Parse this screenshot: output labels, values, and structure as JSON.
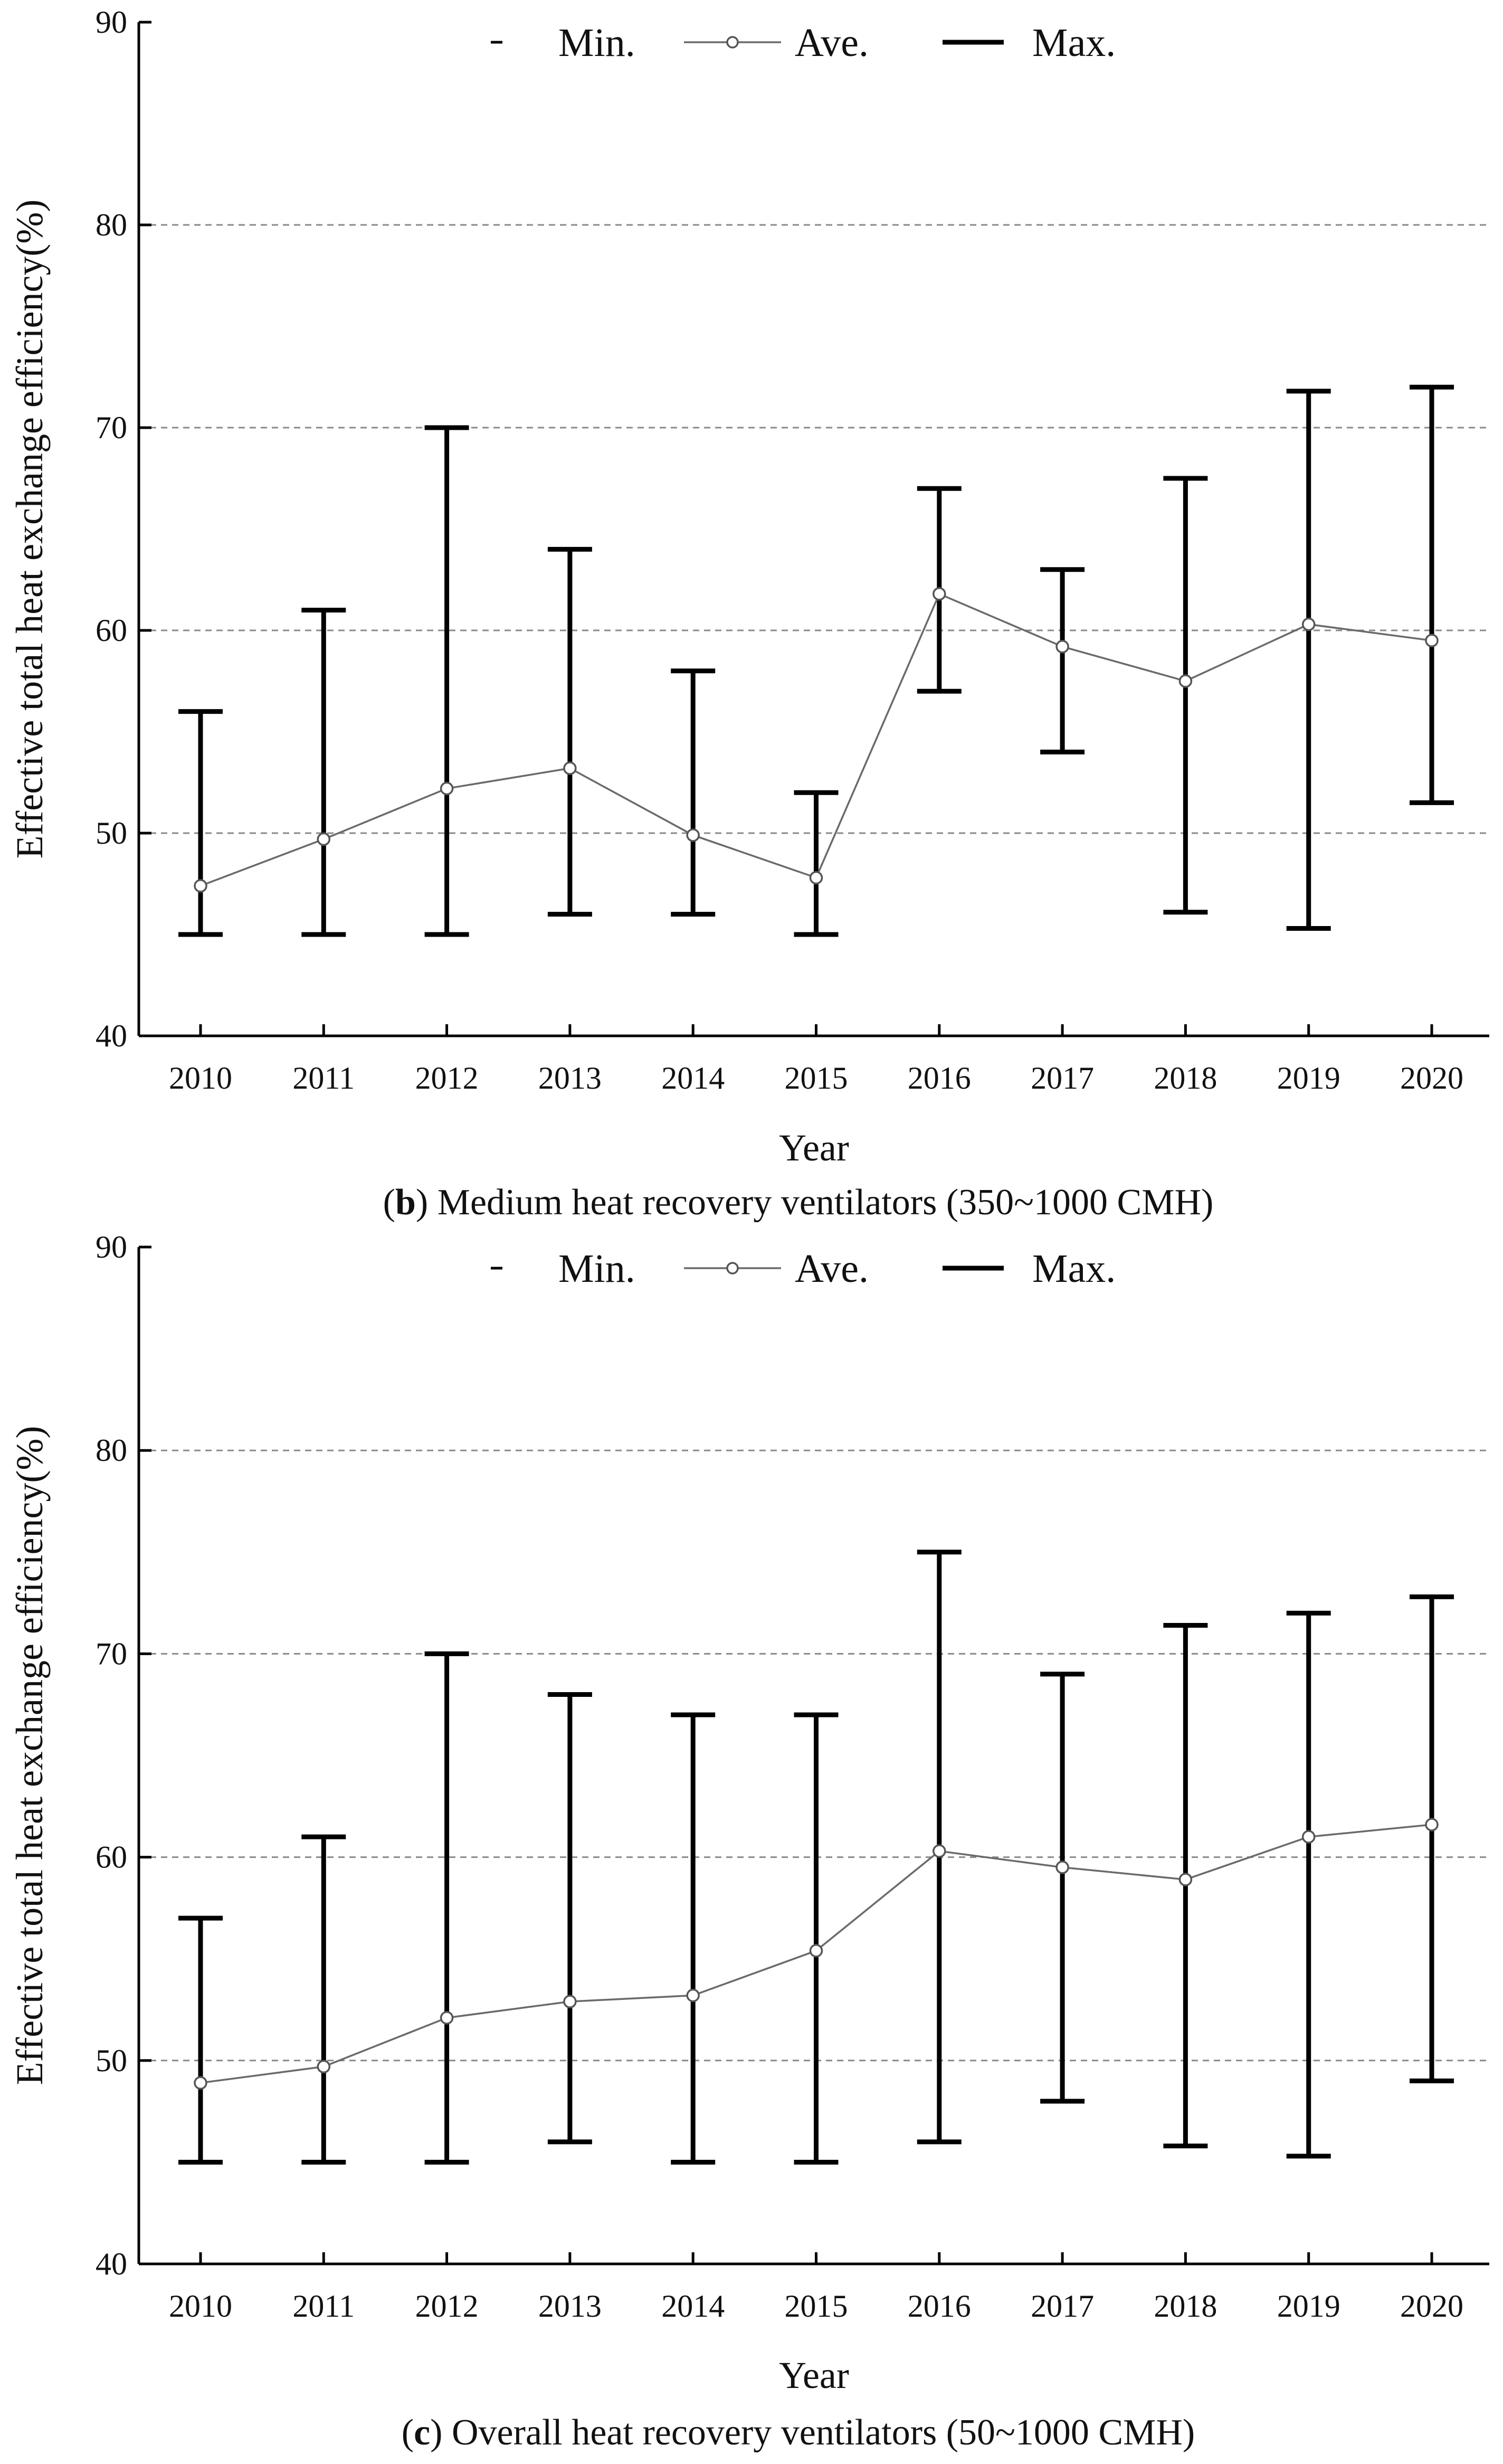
{
  "chart_data": [
    {
      "type": "errorbar-line",
      "caption_letter": "b",
      "caption_text": " Medium heat recovery ventilators (350~1000 CMH)",
      "xlabel": "Year",
      "ylabel": "Effective total heat exchange efficiency(%)",
      "ylim": [
        40,
        90
      ],
      "yticks": [
        40,
        50,
        60,
        70,
        80,
        90
      ],
      "grid_values": [
        50,
        60,
        70,
        80
      ],
      "categories": [
        "2010",
        "2011",
        "2012",
        "2013",
        "2014",
        "2015",
        "2016",
        "2017",
        "2018",
        "2019",
        "2020"
      ],
      "legend": {
        "min": "Min.",
        "ave": "Ave.",
        "max": "Max."
      },
      "series": [
        {
          "name": "Min.",
          "values": [
            45,
            45,
            45,
            46,
            46,
            45,
            57,
            54,
            46.1,
            45.3,
            51.5
          ]
        },
        {
          "name": "Ave.",
          "values": [
            47.4,
            49.7,
            52.2,
            53.2,
            49.9,
            47.8,
            61.8,
            59.2,
            57.5,
            60.3,
            59.5
          ]
        },
        {
          "name": "Max.",
          "values": [
            56,
            61,
            70,
            64,
            58,
            52,
            67,
            63,
            67.5,
            71.8,
            72
          ]
        }
      ]
    },
    {
      "type": "errorbar-line",
      "caption_letter": "c",
      "caption_text": " Overall heat recovery ventilators (50~1000 CMH)",
      "xlabel": "Year",
      "ylabel": "Effective total heat exchange efficiency(%)",
      "ylim": [
        40,
        90
      ],
      "yticks": [
        40,
        50,
        60,
        70,
        80,
        90
      ],
      "grid_values": [
        50,
        60,
        70,
        80
      ],
      "categories": [
        "2010",
        "2011",
        "2012",
        "2013",
        "2014",
        "2015",
        "2016",
        "2017",
        "2018",
        "2019",
        "2020"
      ],
      "legend": {
        "min": "Min.",
        "ave": "Ave.",
        "max": "Max."
      },
      "series": [
        {
          "name": "Min.",
          "values": [
            45,
            45,
            45,
            46,
            45,
            45,
            46,
            48,
            45.8,
            45.3,
            49
          ]
        },
        {
          "name": "Ave.",
          "values": [
            48.9,
            49.7,
            52.1,
            52.9,
            53.2,
            55.4,
            60.3,
            59.5,
            58.9,
            61,
            61.6
          ]
        },
        {
          "name": "Max.",
          "values": [
            57,
            61,
            70,
            68,
            67,
            67,
            75,
            69,
            71.4,
            72,
            72.8
          ]
        }
      ]
    }
  ]
}
